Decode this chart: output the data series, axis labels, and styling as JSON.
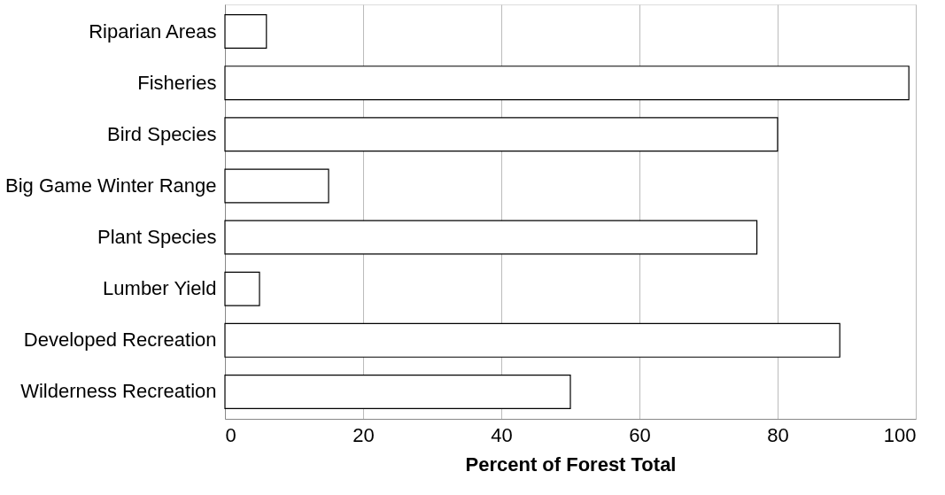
{
  "chart_data": {
    "type": "bar",
    "orientation": "horizontal",
    "xlabel": "Percent of Forest Total",
    "categories": [
      "Riparian Areas",
      "Fisheries",
      "Bird Species",
      "Big Game Winter Range",
      "Plant Species",
      "Lumber Yield",
      "Developed Recreation",
      "Wilderness Recreation"
    ],
    "values": [
      6,
      99,
      80,
      15,
      77,
      5,
      89,
      50
    ],
    "color": "#ffffff",
    "xlim": [
      0,
      100
    ],
    "xticks": [
      0,
      20,
      40,
      60,
      80,
      100
    ],
    "grid": "x"
  }
}
